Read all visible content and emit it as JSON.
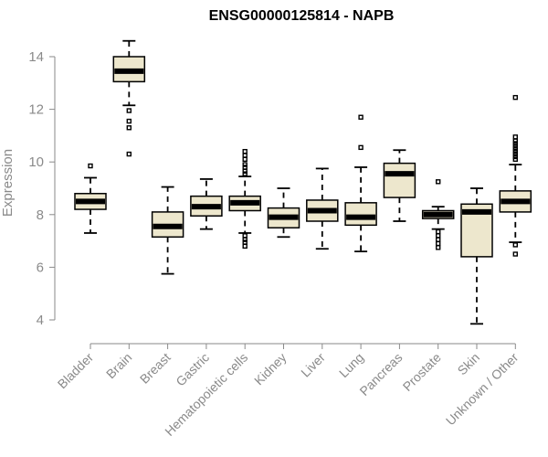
{
  "chart_data": {
    "type": "boxplot",
    "title": "ENSG00000125814 - NAPB",
    "ylabel": "Expression",
    "xlabel": "",
    "ylim": [
      3.7,
      15
    ],
    "yticks": [
      4,
      6,
      8,
      10,
      12,
      14
    ],
    "categories": [
      "Bladder",
      "Brain",
      "Breast",
      "Gastric",
      "Hematopoietic cells",
      "Kidney",
      "Liver",
      "Lung",
      "Pancreas",
      "Prostate",
      "Skin",
      "Unknown / Other"
    ],
    "boxes": [
      {
        "whisker_low": 7.3,
        "q1": 8.2,
        "median": 8.5,
        "q3": 8.8,
        "whisker_high": 9.4,
        "outliers": [
          9.85
        ]
      },
      {
        "whisker_low": 12.15,
        "q1": 13.05,
        "median": 13.45,
        "q3": 14.0,
        "whisker_high": 14.6,
        "outliers": [
          11.95,
          11.55,
          11.3,
          10.3
        ]
      },
      {
        "whisker_low": 5.75,
        "q1": 7.15,
        "median": 7.55,
        "q3": 8.1,
        "whisker_high": 9.05,
        "outliers": []
      },
      {
        "whisker_low": 7.45,
        "q1": 7.95,
        "median": 8.3,
        "q3": 8.7,
        "whisker_high": 9.35,
        "outliers": []
      },
      {
        "whisker_low": 7.3,
        "q1": 8.15,
        "median": 8.45,
        "q3": 8.7,
        "whisker_high": 9.45,
        "outliers": [
          10.4,
          10.25,
          10.1,
          9.9,
          9.8,
          9.65,
          9.55,
          7.2,
          7.05,
          6.95,
          6.8
        ]
      },
      {
        "whisker_low": 7.15,
        "q1": 7.5,
        "median": 7.9,
        "q3": 8.25,
        "whisker_high": 9.0,
        "outliers": []
      },
      {
        "whisker_low": 6.7,
        "q1": 7.75,
        "median": 8.15,
        "q3": 8.55,
        "whisker_high": 9.75,
        "outliers": []
      },
      {
        "whisker_low": 6.6,
        "q1": 7.6,
        "median": 7.9,
        "q3": 8.45,
        "whisker_high": 9.8,
        "outliers": [
          11.7,
          10.55
        ]
      },
      {
        "whisker_low": 7.75,
        "q1": 8.65,
        "median": 9.55,
        "q3": 9.95,
        "whisker_high": 10.45,
        "outliers": []
      },
      {
        "whisker_low": 7.45,
        "q1": 7.85,
        "median": 8.0,
        "q3": 8.15,
        "whisker_high": 8.3,
        "outliers": [
          9.25,
          7.35,
          7.2,
          7.05,
          6.9,
          6.75
        ]
      },
      {
        "whisker_low": 3.85,
        "q1": 6.4,
        "median": 8.1,
        "q3": 8.4,
        "whisker_high": 9.0,
        "outliers": []
      },
      {
        "whisker_low": 6.95,
        "q1": 8.1,
        "median": 8.5,
        "q3": 8.9,
        "whisker_high": 9.9,
        "outliers": [
          12.45,
          10.95,
          10.8,
          10.7,
          10.6,
          10.5,
          10.4,
          10.3,
          10.2,
          10.1,
          6.85,
          6.5
        ]
      }
    ],
    "grid": false,
    "colors": {
      "box_fill": "#ede7cd",
      "axis": "#8a8a8a",
      "title": "#000000"
    }
  }
}
